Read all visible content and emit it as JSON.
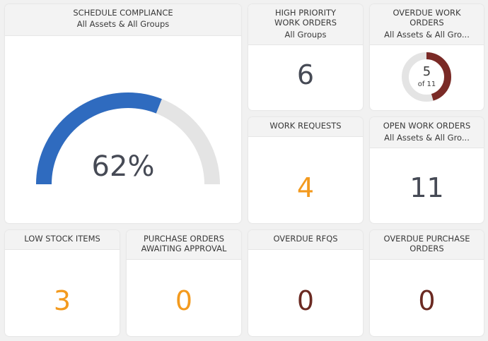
{
  "colors": {
    "gauge_fill": "#2f6bbf",
    "gauge_track": "#e4e4e4",
    "donut_fill": "#7a2a26",
    "donut_track": "#e4e4e4",
    "value_dark": "#464a55",
    "value_orange": "#f39a1e",
    "value_maroon": "#6b2a22"
  },
  "schedule_compliance": {
    "title": "SCHEDULE COMPLIANCE",
    "subtitle": "All Assets & All Groups",
    "value_label": "62%",
    "fraction": 0.62
  },
  "high_priority": {
    "title_line1": "HIGH PRIORITY",
    "title_line2": "WORK ORDERS",
    "subtitle": "All Groups",
    "value": "6"
  },
  "overdue_work_orders": {
    "title_line1": "OVERDUE WORK",
    "title_line2": "ORDERS",
    "subtitle": "All Assets & All Gro...",
    "value": "5",
    "of_label": "of 11",
    "fraction": 0.4545
  },
  "work_requests": {
    "title": "WORK REQUESTS",
    "value": "4"
  },
  "open_work_orders": {
    "title": "OPEN WORK ORDERS",
    "subtitle": "All Assets & All Gro...",
    "value": "11"
  },
  "low_stock": {
    "title": "LOW STOCK ITEMS",
    "value": "3"
  },
  "purchase_orders_approval": {
    "title_line1": "PURCHASE ORDERS",
    "title_line2": "AWAITING APPROVAL",
    "value": "0"
  },
  "overdue_rfqs": {
    "title": "OVERDUE RFQS",
    "value": "0"
  },
  "overdue_purchase_orders": {
    "title_line1": "OVERDUE PURCHASE",
    "title_line2": "ORDERS",
    "value": "0"
  }
}
